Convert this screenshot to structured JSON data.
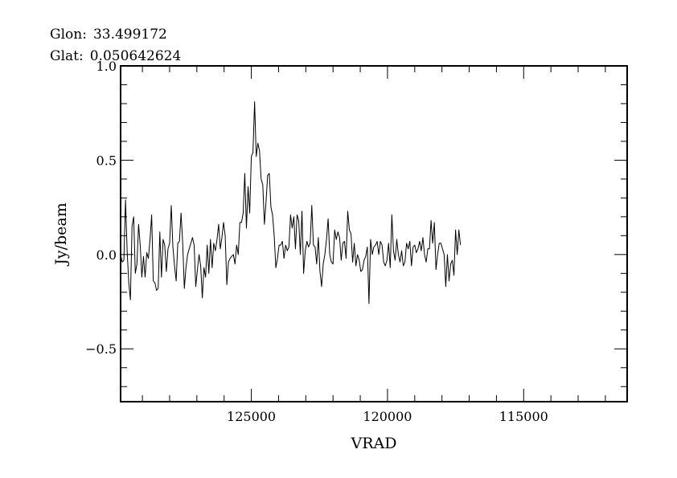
{
  "header": {
    "glon_label": "Glon:",
    "glon_value": "33.499172",
    "glat_label": "Glat:",
    "glat_value": "0.050642624"
  },
  "chart_data": {
    "type": "line",
    "title": "",
    "xlabel": "VRAD",
    "ylabel": "Jy/beam",
    "xlim": [
      129800,
      111200
    ],
    "ylim": [
      -0.78,
      1.0
    ],
    "x_reversed": true,
    "xticks": [
      125000,
      120000,
      115000
    ],
    "xtick_labels": [
      "125000",
      "120000",
      "115000"
    ],
    "yticks": [
      1.0,
      0.5,
      0.0,
      -0.5
    ],
    "ytick_labels": [
      "1.0",
      "0.5",
      "0.0",
      "−0.5"
    ],
    "grid": false,
    "legend": "none",
    "series": [
      {
        "name": "",
        "x_start": 129800,
        "x_step": -60,
        "values": [
          0.0,
          -0.04,
          -0.03,
          0.29,
          0.02,
          -0.15,
          -0.24,
          0.15,
          0.2,
          -0.1,
          -0.05,
          0.16,
          0.05,
          -0.12,
          -0.01,
          -0.12,
          0.01,
          -0.02,
          0.08,
          0.21,
          -0.14,
          -0.15,
          -0.19,
          -0.18,
          0.12,
          -0.12,
          0.08,
          0.05,
          -0.09,
          0.03,
          0.06,
          0.26,
          0.04,
          -0.06,
          -0.14,
          0.06,
          0.07,
          0.22,
          0.06,
          -0.18,
          -0.07,
          0.0,
          0.03,
          0.06,
          0.09,
          0.05,
          -0.17,
          -0.08,
          0.0,
          -0.06,
          -0.23,
          -0.07,
          -0.12,
          0.05,
          -0.1,
          0.08,
          -0.07,
          0.06,
          0.02,
          0.08,
          0.16,
          0.03,
          0.09,
          0.17,
          0.1,
          -0.16,
          -0.04,
          -0.02,
          -0.01,
          0.0,
          -0.05,
          0.05,
          0.0,
          0.17,
          0.17,
          0.22,
          0.43,
          0.14,
          0.36,
          0.22,
          0.52,
          0.54,
          0.81,
          0.52,
          0.59,
          0.55,
          0.4,
          0.37,
          0.16,
          0.28,
          0.42,
          0.43,
          0.25,
          0.21,
          0.1,
          -0.07,
          -0.02,
          0.05,
          0.05,
          0.07,
          -0.02,
          0.05,
          0.02,
          0.04,
          0.21,
          0.14,
          0.2,
          0.03,
          0.21,
          0.18,
          0.0,
          0.23,
          -0.1,
          0.02,
          0.07,
          0.04,
          0.06,
          0.26,
          0.05,
          0.04,
          -0.05,
          0.09,
          -0.09,
          -0.17,
          -0.05,
          0.0,
          0.08,
          0.19,
          0.0,
          -0.04,
          -0.05,
          0.13,
          0.08,
          0.12,
          0.09,
          -0.03,
          0.06,
          0.07,
          -0.02,
          0.23,
          0.13,
          0.11,
          -0.04,
          0.06,
          -0.06,
          0.0,
          -0.03,
          -0.09,
          -0.08,
          -0.03,
          -0.01,
          0.04,
          -0.26,
          0.08,
          0.0,
          0.04,
          0.05,
          0.07,
          0.0,
          0.07,
          0.05,
          -0.04,
          -0.06,
          -0.03,
          0.06,
          -0.07,
          0.21,
          0.02,
          -0.03,
          0.08,
          0.0,
          -0.04,
          0.02,
          -0.06,
          -0.04,
          0.06,
          0.03,
          0.07,
          -0.06,
          0.04,
          0.05,
          0.01,
          0.03,
          0.07,
          0.02,
          0.09,
          0.0,
          -0.04,
          0.03,
          0.03,
          0.18,
          0.06,
          0.17,
          -0.08,
          0.0,
          0.06,
          0.06,
          0.03,
          0.0,
          -0.17,
          0.0,
          -0.14,
          -0.05,
          -0.03,
          -0.11,
          0.13,
          0.0,
          0.13,
          0.05
        ]
      }
    ]
  },
  "style": {
    "line_color": "#000000",
    "frame_color": "#000000",
    "background": "#ffffff"
  }
}
